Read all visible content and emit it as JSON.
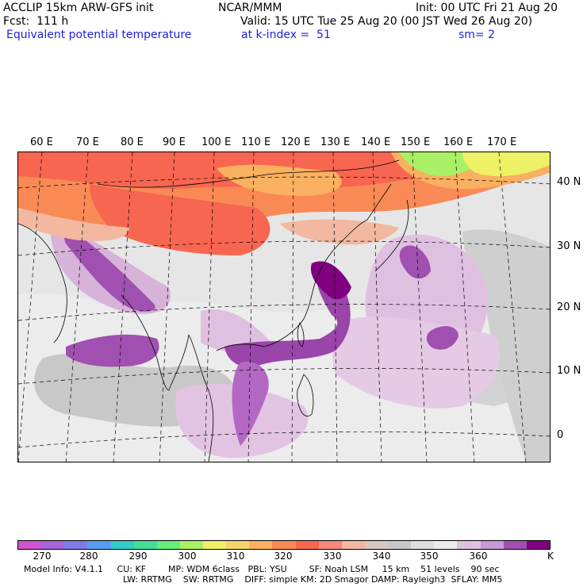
{
  "header": {
    "line1_left": "ACCLIP 15km ARW-GFS init",
    "line1_center": "NCAR/MMM",
    "line1_right": "Init: 00 UTC Fri 21 Aug 20",
    "line2_left": "Fcst:  111 h",
    "line2_right": "Valid: 15 UTC Tue 25 Aug 20 (00 JST Wed 26 Aug 20)",
    "line3_left": "Equivalent potential temperature",
    "line3_center": "at k-index =  51",
    "line3_right": "sm= 2"
  },
  "map": {
    "lon_labels": [
      "60 E",
      "70 E",
      "80 E",
      "90 E",
      "100 E",
      "110 E",
      "120 E",
      "130 E",
      "140 E",
      "150 E",
      "160 E",
      "170 E"
    ],
    "lat_labels": [
      "40 N",
      "30 N",
      "20 N",
      "10 N",
      "0"
    ],
    "colors": {
      "land_outline": "#000000",
      "grid": "#000000"
    }
  },
  "colorbar": {
    "unit": "K",
    "tick_labels": [
      "270",
      "280",
      "290",
      "300",
      "310",
      "320",
      "330",
      "340",
      "350",
      "360"
    ],
    "colors": [
      "#cc55cc",
      "#a366dd",
      "#7d7de8",
      "#5b9df0",
      "#33cccc",
      "#44dd99",
      "#66ee77",
      "#aaf066",
      "#eef066",
      "#f7d46a",
      "#f9b060",
      "#f98a55",
      "#f76650",
      "#f58a7a",
      "#f2b8a0",
      "#d8c8c0",
      "#c8c8c8",
      "#dedede",
      "#ececec",
      "#e0c0e0",
      "#c898d8",
      "#a050b0",
      "#800080"
    ]
  },
  "footer": {
    "line1": "Model Info: V4.1.1     CU: KF        MP: WDM 6class   PBL: YSU        SF: Noah LSM     15 km    51 levels    90 sec",
    "line2": "LW: RRTMG    SW: RRTMG    DIFF: simple KM: 2D Smagor DAMP: Rayleigh3  SFLAY: MM5"
  }
}
